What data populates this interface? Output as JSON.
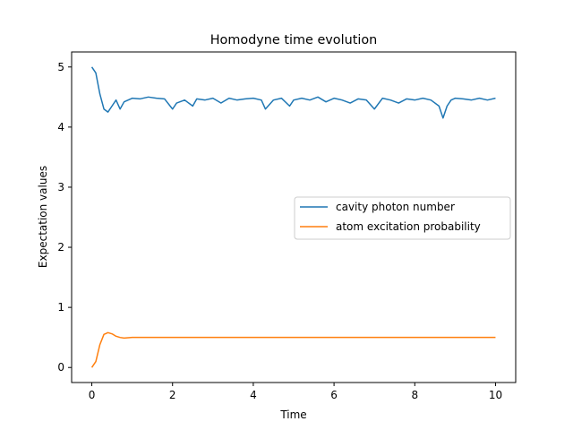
{
  "chart_data": {
    "type": "line",
    "title": "Homodyne time evolution",
    "xlabel": "Time",
    "ylabel": "Expectation values",
    "xlim": [
      -0.5,
      10.5
    ],
    "ylim": [
      -0.25,
      5.25
    ],
    "xticks": [
      0,
      2,
      4,
      6,
      8,
      10
    ],
    "yticks": [
      0,
      1,
      2,
      3,
      4,
      5
    ],
    "grid": false,
    "legend_position": "center-right",
    "series": [
      {
        "name": "cavity photon number",
        "color": "#1f77b4",
        "x": [
          0.0,
          0.1,
          0.2,
          0.3,
          0.4,
          0.5,
          0.6,
          0.7,
          0.8,
          1.0,
          1.2,
          1.4,
          1.6,
          1.8,
          2.0,
          2.1,
          2.3,
          2.5,
          2.6,
          2.8,
          3.0,
          3.2,
          3.4,
          3.6,
          3.8,
          4.0,
          4.2,
          4.3,
          4.5,
          4.7,
          4.9,
          5.0,
          5.2,
          5.4,
          5.6,
          5.8,
          6.0,
          6.2,
          6.4,
          6.6,
          6.8,
          7.0,
          7.2,
          7.4,
          7.6,
          7.8,
          8.0,
          8.2,
          8.4,
          8.6,
          8.7,
          8.8,
          8.9,
          9.0,
          9.2,
          9.4,
          9.6,
          9.8,
          10.0
        ],
        "values": [
          5.0,
          4.9,
          4.55,
          4.3,
          4.25,
          4.35,
          4.45,
          4.3,
          4.42,
          4.48,
          4.47,
          4.5,
          4.48,
          4.47,
          4.3,
          4.4,
          4.45,
          4.35,
          4.47,
          4.45,
          4.48,
          4.4,
          4.48,
          4.45,
          4.47,
          4.48,
          4.45,
          4.3,
          4.45,
          4.48,
          4.35,
          4.45,
          4.48,
          4.45,
          4.5,
          4.42,
          4.48,
          4.45,
          4.4,
          4.47,
          4.45,
          4.3,
          4.48,
          4.45,
          4.4,
          4.47,
          4.45,
          4.48,
          4.45,
          4.35,
          4.15,
          4.35,
          4.45,
          4.48,
          4.47,
          4.45,
          4.48,
          4.45,
          4.48
        ]
      },
      {
        "name": "atom excitation probability",
        "color": "#ff7f0e",
        "x": [
          0.0,
          0.1,
          0.2,
          0.3,
          0.4,
          0.5,
          0.6,
          0.7,
          0.8,
          1.0,
          1.5,
          2.0,
          3.0,
          4.0,
          5.0,
          6.0,
          7.0,
          8.0,
          9.0,
          10.0
        ],
        "values": [
          0.0,
          0.1,
          0.38,
          0.55,
          0.58,
          0.56,
          0.52,
          0.5,
          0.49,
          0.5,
          0.5,
          0.5,
          0.5,
          0.5,
          0.5,
          0.5,
          0.5,
          0.5,
          0.5,
          0.5
        ]
      }
    ]
  }
}
